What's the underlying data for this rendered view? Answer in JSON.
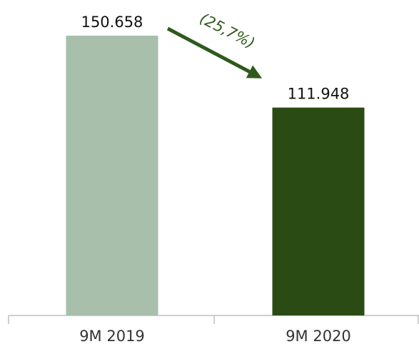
{
  "chart_data": {
    "type": "bar",
    "categories": [
      "9M 2019",
      "9M 2020"
    ],
    "values": [
      150658,
      111948
    ],
    "value_labels": [
      "150.658",
      "111.948"
    ],
    "colors": [
      "#a7bfab",
      "#2b4b14"
    ],
    "annotation": "(25,7%)"
  }
}
